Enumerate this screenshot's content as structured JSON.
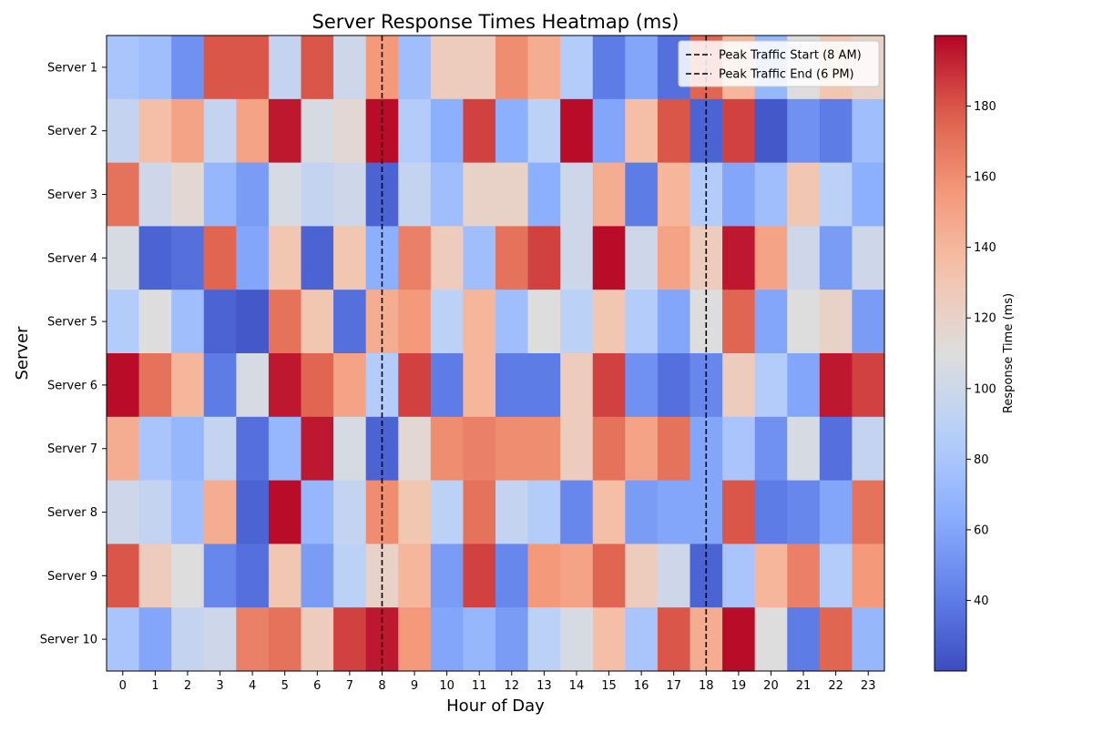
{
  "chart_data": {
    "type": "heatmap",
    "title": "Server Response Times Heatmap (ms)",
    "xlabel": "Hour of Day",
    "ylabel": "Server",
    "x_categories": [
      "0",
      "1",
      "2",
      "3",
      "4",
      "5",
      "6",
      "7",
      "8",
      "9",
      "10",
      "11",
      "12",
      "13",
      "14",
      "15",
      "16",
      "17",
      "18",
      "19",
      "20",
      "21",
      "22",
      "23"
    ],
    "y_categories": [
      "Server 1",
      "Server 2",
      "Server 3",
      "Server 4",
      "Server 5",
      "Server 6",
      "Server 7",
      "Server 8",
      "Server 9",
      "Server 10"
    ],
    "values": [
      [
        80,
        75,
        50,
        180,
        180,
        95,
        180,
        100,
        155,
        75,
        125,
        125,
        160,
        145,
        85,
        40,
        60,
        35,
        175,
        140,
        70,
        110,
        130,
        120
      ],
      [
        95,
        135,
        150,
        95,
        150,
        195,
        105,
        115,
        198,
        85,
        65,
        185,
        65,
        90,
        198,
        60,
        135,
        180,
        30,
        185,
        25,
        50,
        40,
        75
      ],
      [
        170,
        100,
        115,
        70,
        55,
        105,
        95,
        100,
        30,
        95,
        75,
        120,
        120,
        65,
        100,
        145,
        40,
        140,
        85,
        60,
        75,
        130,
        90,
        65
      ],
      [
        105,
        30,
        35,
        175,
        60,
        130,
        30,
        130,
        65,
        165,
        125,
        75,
        170,
        185,
        100,
        198,
        100,
        150,
        125,
        195,
        150,
        100,
        55,
        100
      ],
      [
        85,
        110,
        75,
        30,
        25,
        170,
        130,
        35,
        145,
        155,
        90,
        140,
        75,
        110,
        90,
        130,
        85,
        60,
        110,
        175,
        60,
        110,
        120,
        55
      ],
      [
        198,
        170,
        140,
        40,
        105,
        195,
        175,
        150,
        85,
        185,
        40,
        140,
        40,
        40,
        125,
        185,
        50,
        35,
        45,
        125,
        85,
        60,
        195,
        185
      ],
      [
        145,
        80,
        70,
        95,
        35,
        70,
        195,
        105,
        30,
        115,
        160,
        165,
        160,
        160,
        125,
        170,
        150,
        170,
        60,
        80,
        50,
        105,
        35,
        95
      ],
      [
        100,
        95,
        75,
        145,
        30,
        198,
        70,
        95,
        160,
        130,
        90,
        170,
        95,
        85,
        45,
        135,
        55,
        60,
        60,
        180,
        40,
        45,
        60,
        170
      ],
      [
        180,
        125,
        110,
        45,
        35,
        130,
        55,
        90,
        120,
        140,
        55,
        185,
        45,
        155,
        150,
        175,
        125,
        100,
        30,
        80,
        140,
        165,
        85,
        155
      ],
      [
        80,
        60,
        95,
        100,
        165,
        170,
        125,
        185,
        195,
        155,
        60,
        70,
        55,
        90,
        105,
        135,
        80,
        180,
        145,
        198,
        110,
        40,
        175,
        70
      ]
    ],
    "vmin": 20,
    "vmax": 200,
    "colormap": "coolwarm",
    "colorbar": {
      "label": "Response Time (ms)",
      "ticks": [
        40,
        60,
        80,
        100,
        120,
        140,
        160,
        180
      ]
    },
    "annotations": [
      {
        "type": "vline",
        "x": 8,
        "label": "Peak Traffic Start (8 AM)",
        "color": "#000000",
        "style": "dashed"
      },
      {
        "type": "vline",
        "x": 18,
        "label": "Peak Traffic End (6 PM)",
        "color": "#000000",
        "style": "dashed"
      }
    ],
    "legend": {
      "position": "upper-right"
    },
    "grid": false
  }
}
